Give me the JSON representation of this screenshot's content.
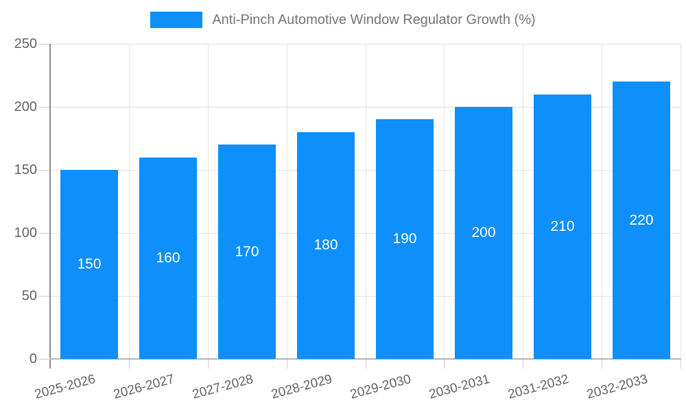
{
  "chart": {
    "colors": {
      "bar": "#0e8ff9",
      "grid": "#e3e3e3",
      "axis_y": "#8c8c8c",
      "axis_x": "#b5b5b5",
      "tick": "#cdcdcd",
      "tick_label": "#636363",
      "legend_text": "#757575",
      "value_label": "#ffffff",
      "background": "#ffffff"
    }
  },
  "chart_data": {
    "type": "bar",
    "title": "Anti-Pinch Automotive Window Regulator Growth (%)",
    "categories": [
      "2025-2026",
      "2026-2027",
      "2027-2028",
      "2028-2029",
      "2029-2030",
      "2030-2031",
      "2031-2032",
      "2032-2033"
    ],
    "values": [
      150,
      160,
      170,
      180,
      190,
      200,
      210,
      220
    ],
    "xlabel": "",
    "ylabel": "",
    "ylim": [
      0,
      250
    ],
    "yticks": [
      0,
      50,
      100,
      150,
      200,
      250
    ],
    "grid": true,
    "legend_position": "top",
    "value_label_position": "inside-center",
    "x_tick_rotation_deg": -15
  }
}
